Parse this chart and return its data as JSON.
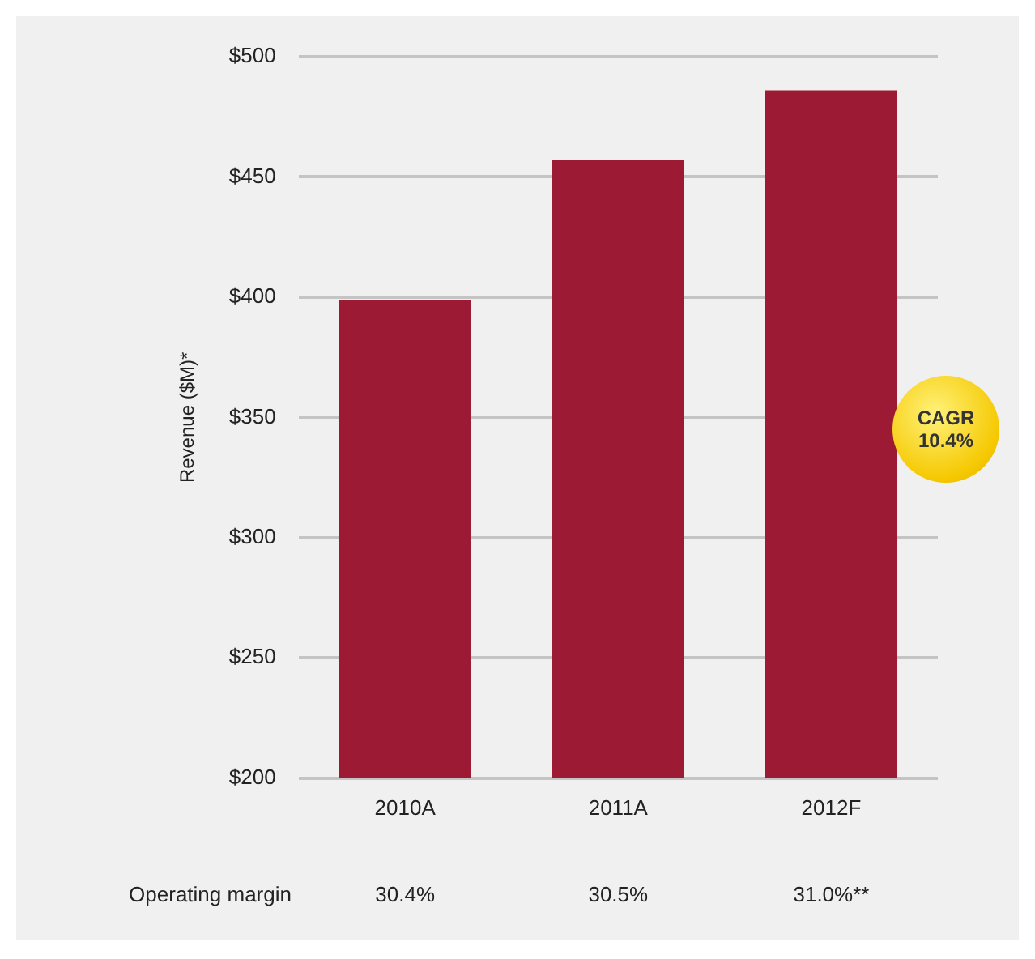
{
  "chart_data": {
    "type": "bar",
    "ylabel": "Revenue ($M)*",
    "categories": [
      "2010A",
      "2011A",
      "2012F"
    ],
    "values": [
      399,
      457,
      486
    ],
    "color": "#9c1a33",
    "ylim": [
      200,
      500
    ],
    "yticks": [
      {
        "value": 200,
        "label": "$200"
      },
      {
        "value": 250,
        "label": "$250"
      },
      {
        "value": 300,
        "label": "$300"
      },
      {
        "value": 350,
        "label": "$350"
      },
      {
        "value": 400,
        "label": "$400"
      },
      {
        "value": 450,
        "label": "$450"
      },
      {
        "value": 500,
        "label": "$500"
      }
    ],
    "grid": "y",
    "legend": false,
    "annotations": [
      "CAGR 10.4%",
      "Operating margin",
      "30.4%",
      "30.5%",
      "31.0%**"
    ]
  }
}
